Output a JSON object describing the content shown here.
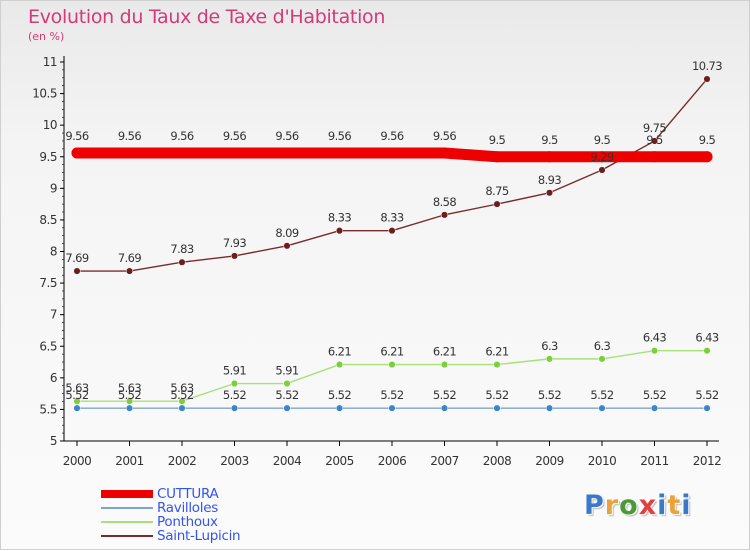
{
  "title": "Evolution du Taux de Taxe d'Habitation",
  "subtitle": "(en %)",
  "colors": {
    "title": "#d23a7a",
    "axis": "#000000",
    "label_text": "#333333",
    "legend_text": "#3355ee"
  },
  "logo": {
    "text": "Proxiti",
    "letter_colors": [
      "#3a78c8",
      "#e8a33a",
      "#4a9a3a",
      "#e04040",
      "#3a78c8",
      "#e8a33a",
      "#3a78c8"
    ]
  },
  "chart_data": {
    "type": "line",
    "x": [
      2000,
      2001,
      2002,
      2003,
      2004,
      2005,
      2006,
      2007,
      2008,
      2009,
      2010,
      2011,
      2012
    ],
    "ylim": [
      5,
      11
    ],
    "yticks": [
      5,
      5.5,
      6,
      6.5,
      7,
      7.5,
      8,
      8.5,
      9,
      9.5,
      10,
      10.5,
      11
    ],
    "ytick_labels": [
      "5",
      "5.5",
      "6",
      "6.5",
      "7",
      "7.5",
      "8",
      "8.5",
      "9",
      "9.5",
      "10",
      "10.5",
      "11"
    ],
    "xlabel": "",
    "ylabel": "",
    "grid": false,
    "legend_position": "bottom-left",
    "series": [
      {
        "name": "CUTTURA",
        "values": [
          9.56,
          9.56,
          9.56,
          9.56,
          9.56,
          9.56,
          9.56,
          9.56,
          9.5,
          9.5,
          9.5,
          9.5,
          9.5
        ],
        "labels": [
          "9.56",
          "9.56",
          "9.56",
          "9.56",
          "9.56",
          "9.56",
          "9.56",
          "9.56",
          "9.5",
          "9.5",
          "9.5",
          "9.5",
          "9.5"
        ],
        "color": "#ee0000",
        "marker_color": "#ee0000",
        "style": "thick"
      },
      {
        "name": "Ravilloles",
        "values": [
          5.52,
          5.52,
          5.52,
          5.52,
          5.52,
          5.52,
          5.52,
          5.52,
          5.52,
          5.52,
          5.52,
          5.52,
          5.52
        ],
        "labels": [
          "5.52",
          "5.52",
          "5.52",
          "5.52",
          "5.52",
          "5.52",
          "5.52",
          "5.52",
          "5.52",
          "5.52",
          "5.52",
          "5.52",
          "5.52"
        ],
        "color": "#7aa7c7",
        "marker_color": "#3a86c8",
        "style": "thin"
      },
      {
        "name": "Ponthoux",
        "values": [
          5.63,
          5.63,
          5.63,
          5.91,
          5.91,
          6.21,
          6.21,
          6.21,
          6.21,
          6.3,
          6.3,
          6.43,
          6.43
        ],
        "labels": [
          "5.63",
          "5.63",
          "5.63",
          "5.91",
          "5.91",
          "6.21",
          "6.21",
          "6.21",
          "6.21",
          "6.3",
          "6.3",
          "6.43",
          "6.43"
        ],
        "color": "#a8e07a",
        "marker_color": "#7ccf3a",
        "style": "thin"
      },
      {
        "name": "Saint-Lupicin",
        "values": [
          7.69,
          7.69,
          7.83,
          7.93,
          8.09,
          8.33,
          8.33,
          8.58,
          8.75,
          8.93,
          9.29,
          9.75,
          10.73
        ],
        "labels": [
          "7.69",
          "7.69",
          "7.83",
          "7.93",
          "8.09",
          "8.33",
          "8.33",
          "8.58",
          "8.75",
          "8.93",
          "9.29",
          "9.75",
          "10.73"
        ],
        "color": "#7a2a2a",
        "marker_color": "#6a1e1e",
        "style": "thin"
      }
    ]
  }
}
